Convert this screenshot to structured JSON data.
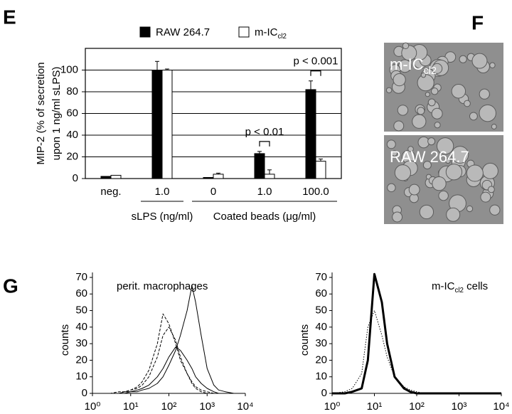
{
  "panel_labels": [
    "E",
    "F",
    "G"
  ],
  "chart_data": [
    {
      "type": "bar",
      "ylabel": [
        "MIP-2 (% of secretion",
        "upon 1 ng/ml sLPS)"
      ],
      "categories": [
        "neg.",
        "1.0",
        "0",
        "1.0",
        "100.0"
      ],
      "groups": [
        {
          "label": "sLPS (ng/ml)",
          "categories": [
            1,
            1
          ]
        },
        {
          "label": "Coated beads (μg/ml)",
          "categories": [
            2,
            4
          ]
        }
      ],
      "series": [
        {
          "name": "RAW 264.7",
          "color": "#000000",
          "values": [
            2,
            100,
            1,
            23,
            82
          ],
          "errors": [
            0,
            8,
            0,
            2,
            8
          ]
        },
        {
          "name": "m-IC",
          "name_subscript": "cl2",
          "color": "#ffffff",
          "values": [
            3,
            100,
            4,
            4,
            16
          ],
          "errors": [
            0,
            1,
            1,
            4,
            2
          ]
        }
      ],
      "ylim": [
        0,
        120
      ],
      "yticks": [
        0,
        20,
        40,
        60,
        80,
        100
      ],
      "grid": true,
      "annotations": [
        {
          "text": "p < 0.01",
          "category": 3
        },
        {
          "text": "p < 0.001",
          "category": 4
        }
      ]
    },
    {
      "type": "line",
      "annotation": "perit. macrophages",
      "ylabel": "counts",
      "xscale": "log",
      "x": [
        1,
        2,
        3,
        5,
        7,
        10,
        15,
        20,
        30,
        50,
        70,
        100,
        150,
        200,
        300,
        400,
        500,
        700,
        1000,
        1500,
        2000,
        3000,
        5000,
        10000
      ],
      "xlim": [
        1,
        10000
      ],
      "xticks": [
        {
          "value": 1,
          "label": "10⁰"
        },
        {
          "value": 10,
          "label": "10¹"
        },
        {
          "value": 100,
          "label": "10²"
        },
        {
          "value": 1000,
          "label": "10³"
        },
        {
          "value": 10000,
          "label": "10⁴"
        }
      ],
      "ylim": [
        0,
        73
      ],
      "yticks": [
        0,
        10,
        20,
        30,
        40,
        50,
        60,
        70
      ],
      "series": [
        {
          "color": "#000000",
          "dash": "solid",
          "line_width": 1,
          "values": [
            0,
            0,
            0,
            0,
            0,
            1,
            1,
            2,
            3,
            6,
            10,
            17,
            26,
            35,
            50,
            65,
            55,
            35,
            15,
            5,
            2,
            1,
            0,
            0
          ]
        },
        {
          "color": "#000000",
          "dash": "solid",
          "line_width": 1,
          "values": [
            0,
            0,
            0,
            0,
            1,
            1,
            2,
            3,
            5,
            10,
            15,
            22,
            28,
            26,
            20,
            15,
            10,
            6,
            3,
            1,
            0,
            0,
            0,
            0
          ]
        },
        {
          "color": "#000000",
          "dash": "dashed",
          "line_width": 1,
          "values": [
            0,
            0,
            0,
            1,
            1,
            2,
            4,
            7,
            14,
            30,
            48,
            42,
            30,
            20,
            12,
            7,
            4,
            2,
            1,
            0,
            0,
            0,
            0,
            0
          ]
        },
        {
          "color": "#000000",
          "dash": "dashed",
          "line_width": 1,
          "values": [
            0,
            0,
            0,
            0,
            1,
            2,
            3,
            5,
            10,
            22,
            35,
            40,
            32,
            22,
            12,
            6,
            3,
            1,
            0,
            0,
            0,
            0,
            0,
            0
          ]
        }
      ]
    },
    {
      "type": "line",
      "annotation": "m-IC",
      "annotation_subscript": "cl2",
      "annotation_suffix": " cells",
      "ylabel": "counts",
      "xscale": "log",
      "x": [
        1,
        2,
        3,
        5,
        7,
        10,
        15,
        20,
        30,
        50,
        70,
        100,
        150,
        200,
        300,
        400,
        500,
        700,
        1000,
        1500,
        2000,
        3000,
        5000,
        10000
      ],
      "xlim": [
        1,
        10000
      ],
      "xticks": [
        {
          "value": 1,
          "label": "10⁰"
        },
        {
          "value": 10,
          "label": "10¹"
        },
        {
          "value": 100,
          "label": "10²"
        },
        {
          "value": 1000,
          "label": "10³"
        },
        {
          "value": 10000,
          "label": "10⁴"
        }
      ],
      "ylim": [
        0,
        73
      ],
      "yticks": [
        0,
        10,
        20,
        30,
        40,
        50,
        60,
        70
      ],
      "series": [
        {
          "color": "#000000",
          "dash": "dotted",
          "line_width": 1,
          "values": [
            0,
            1,
            3,
            12,
            40,
            50,
            35,
            22,
            10,
            4,
            2,
            1,
            0,
            0,
            0,
            0,
            0,
            0,
            0,
            0,
            0,
            0,
            0,
            0
          ]
        },
        {
          "color": "#000000",
          "dash": "solid",
          "line_width": 3,
          "values": [
            0,
            0,
            1,
            3,
            20,
            72,
            55,
            30,
            10,
            3,
            1,
            0,
            0,
            0,
            0,
            0,
            0,
            0,
            0,
            0,
            0,
            0,
            0,
            0
          ]
        }
      ]
    }
  ],
  "images": [
    {
      "label": "m-IC",
      "label_subscript": "cl2"
    },
    {
      "label": "RAW 264.7"
    }
  ]
}
